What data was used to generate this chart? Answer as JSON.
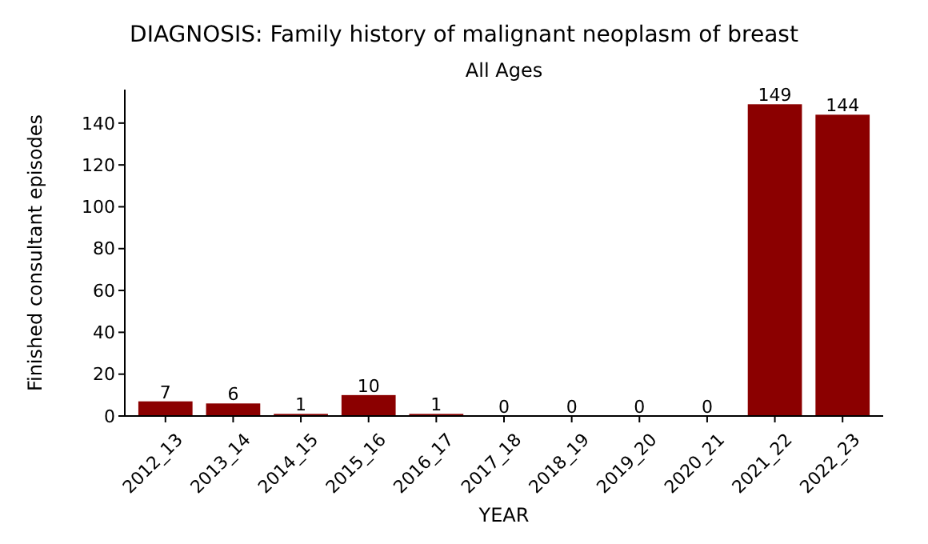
{
  "chart_data": {
    "type": "bar",
    "title": "DIAGNOSIS: Family history of malignant neoplasm of breast",
    "subtitle": "All Ages",
    "xlabel": "YEAR",
    "ylabel": "Finished consultant episodes",
    "categories": [
      "2012_13",
      "2013_14",
      "2014_15",
      "2015_16",
      "2016_17",
      "2017_18",
      "2018_19",
      "2019_20",
      "2020_21",
      "2021_22",
      "2022_23"
    ],
    "values": [
      7,
      6,
      1,
      10,
      1,
      0,
      0,
      0,
      0,
      149,
      144
    ],
    "color": "#8b0000",
    "ylim": [
      0,
      156
    ],
    "yticks": [
      0,
      20,
      40,
      60,
      80,
      100,
      120,
      140
    ],
    "data_labels": true
  }
}
